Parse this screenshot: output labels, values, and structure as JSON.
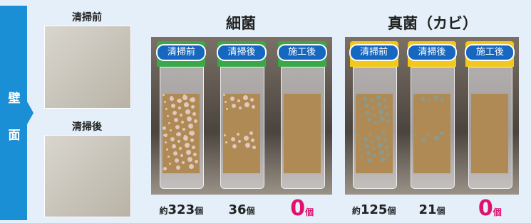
{
  "side_label": [
    "壁",
    "面"
  ],
  "photos": [
    {
      "label": "清掃前"
    },
    {
      "label": "清掃後"
    }
  ],
  "panels": [
    {
      "title": "細菌",
      "tubes": [
        {
          "label": "清掃前",
          "prefix": "約",
          "number": 323,
          "unit": "個"
        },
        {
          "label": "清掃後",
          "number": 36,
          "unit": "個"
        },
        {
          "label": "施工後",
          "number": 0,
          "unit": "個"
        }
      ]
    },
    {
      "title": "真菌（カビ）",
      "tubes": [
        {
          "label": "清掃前",
          "prefix": "約",
          "number": 125,
          "unit": "個"
        },
        {
          "label": "清掃後",
          "number": 21,
          "unit": "個"
        },
        {
          "label": "施工後",
          "number": 0,
          "unit": "個"
        }
      ]
    }
  ]
}
